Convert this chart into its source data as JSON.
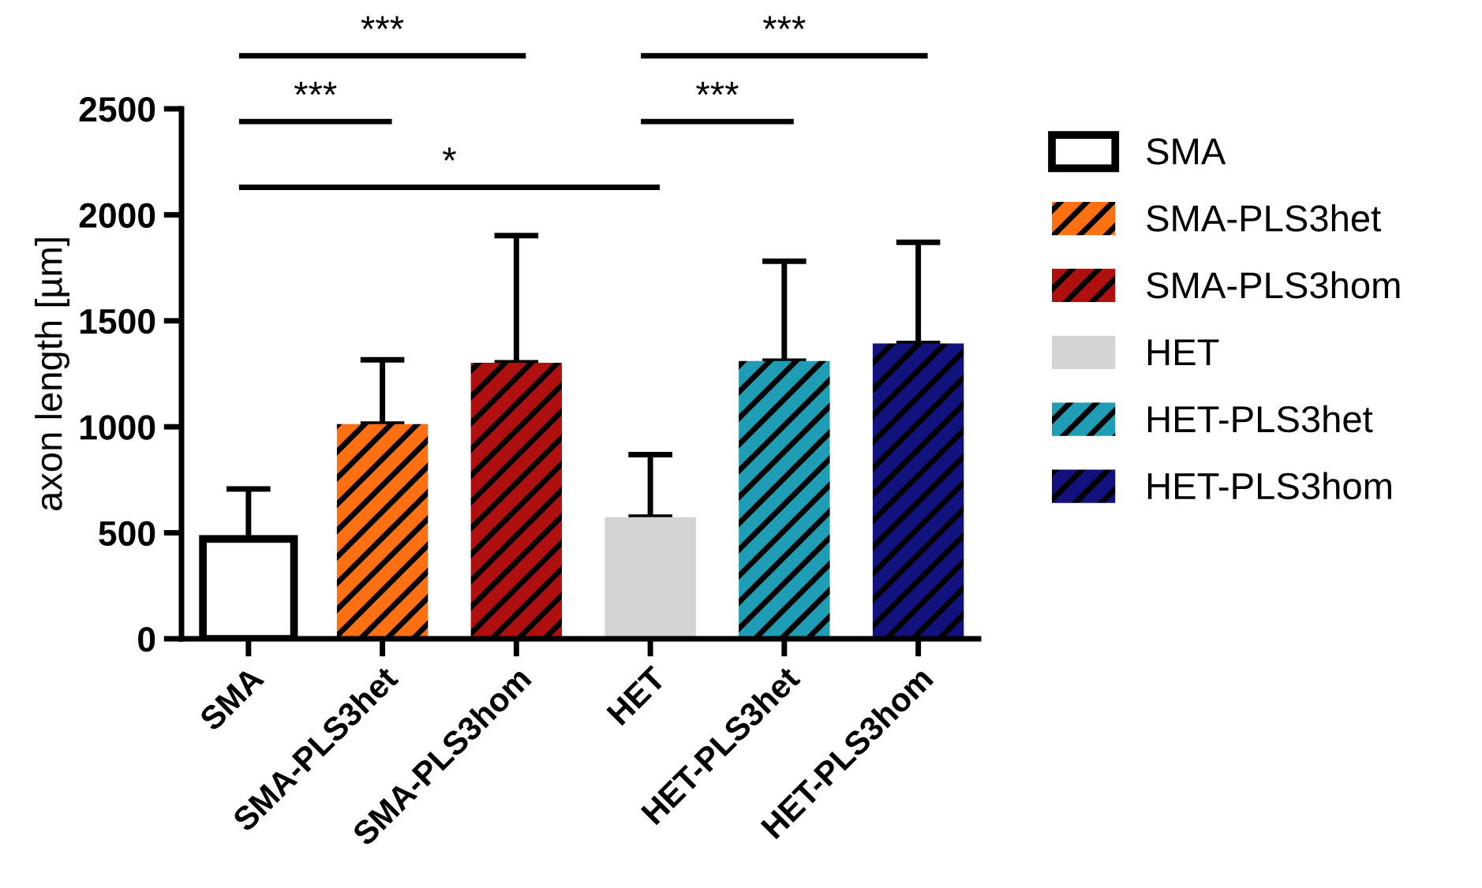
{
  "chart_data": {
    "type": "bar",
    "ylabel": "axon length [µm]",
    "categories": [
      "SMA",
      "SMA-PLS3het",
      "SMA-PLS3hom",
      "HET",
      "HET-PLS3het",
      "HET-PLS3hom"
    ],
    "series": [
      {
        "name": "SMA",
        "color": "#ffffff",
        "values": [
          471,
          null,
          null,
          null,
          null,
          null
        ],
        "errors": [
          [
            471,
            707
          ],
          null,
          null,
          null,
          null,
          null
        ]
      },
      {
        "name": "SMA-PLS3het",
        "color": "#ff7012",
        "values": [
          null,
          1013,
          null,
          null,
          null,
          null
        ],
        "errors": [
          null,
          [
            1013,
            1316
          ],
          null,
          null,
          null,
          null
        ]
      },
      {
        "name": "SMA-PLS3hom",
        "color": "#b00f0f",
        "values": [
          null,
          null,
          1302,
          null,
          null,
          null
        ],
        "errors": [
          null,
          null,
          [
            1302,
            1902
          ],
          null,
          null,
          null
        ]
      },
      {
        "name": "HET",
        "color": "#d4d4d4",
        "values": [
          null,
          null,
          null,
          574,
          null,
          null
        ],
        "errors": [
          null,
          null,
          null,
          [
            574,
            869
          ],
          null,
          null
        ]
      },
      {
        "name": "HET-PLS3het",
        "color": "#1e9db5",
        "values": [
          null,
          null,
          null,
          null,
          1310,
          null
        ],
        "errors": [
          null,
          null,
          null,
          null,
          [
            1310,
            1781
          ],
          null
        ]
      },
      {
        "name": "HET-PLS3hom",
        "color": "#12127f",
        "values": [
          null,
          null,
          null,
          null,
          null,
          1393
        ],
        "errors": [
          null,
          null,
          null,
          null,
          null,
          [
            1393,
            1870
          ]
        ]
      }
    ],
    "ylim": [
      0,
      2500
    ],
    "yticks": [
      0,
      500,
      1000,
      1500,
      2000,
      2500
    ],
    "annotations": [
      "***",
      "***",
      "*",
      "***",
      "***"
    ],
    "legend": "right",
    "grid": false
  }
}
